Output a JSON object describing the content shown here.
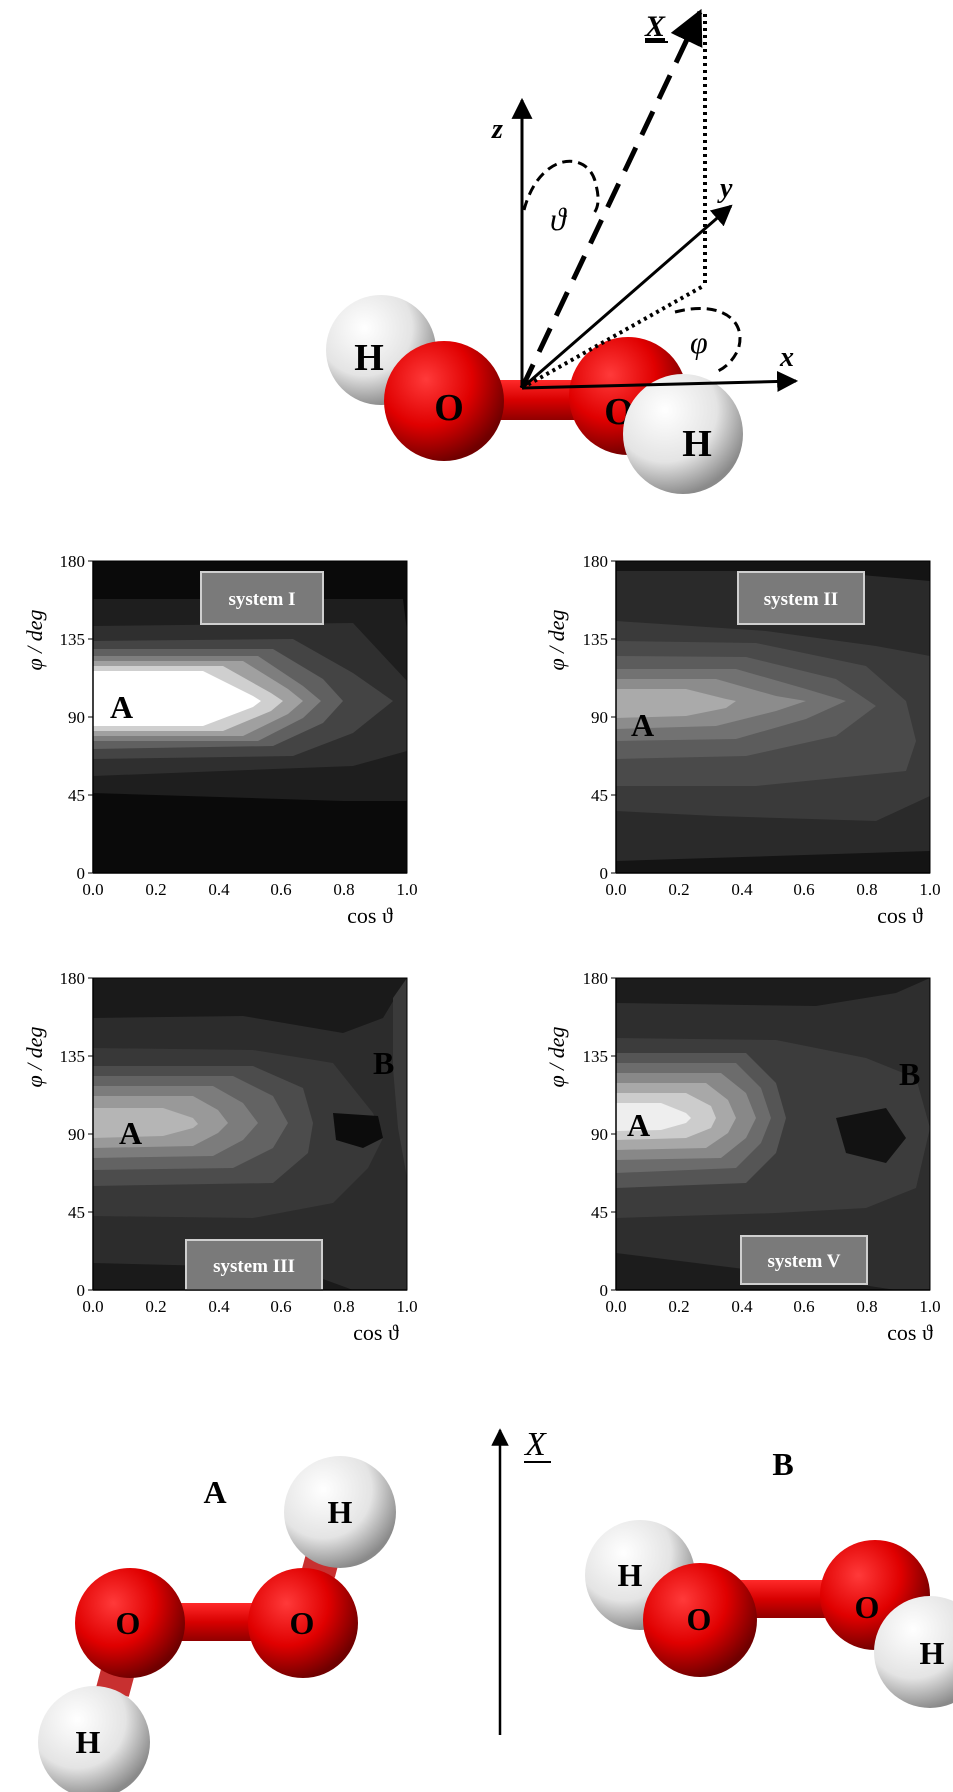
{
  "top_diagram": {
    "axis_z": "z",
    "axis_y": "y",
    "axis_x": "x",
    "axis_X": "X",
    "angle_theta": "ϑ",
    "angle_phi": "φ",
    "atoms": [
      "H",
      "O",
      "O",
      "H"
    ]
  },
  "contour_axes": {
    "ylabel": "φ / deg",
    "xlabel": "cos ϑ",
    "yticks": [
      "0",
      "45",
      "90",
      "135",
      "180"
    ],
    "xticks": [
      "0.0",
      "0.2",
      "0.4",
      "0.6",
      "0.8",
      "1.0"
    ]
  },
  "chart_data": [
    {
      "type": "heatmap",
      "badge": "system I",
      "xlim": [
        0.0,
        1.0
      ],
      "ylim": [
        0,
        180
      ],
      "regions": [
        {
          "label": "A",
          "x": 0.1,
          "y": 90
        }
      ],
      "peak": {
        "x": 0.0,
        "y": 90,
        "level": "max"
      }
    },
    {
      "type": "heatmap",
      "badge": "system II",
      "xlim": [
        0.0,
        1.0
      ],
      "ylim": [
        0,
        180
      ],
      "regions": [
        {
          "label": "A",
          "x": 0.1,
          "y": 80
        }
      ],
      "peak": {
        "x": 0.1,
        "y": 90,
        "level": "medium"
      }
    },
    {
      "type": "heatmap",
      "badge": "system III",
      "xlim": [
        0.0,
        1.0
      ],
      "ylim": [
        0,
        180
      ],
      "regions": [
        {
          "label": "A",
          "x": 0.13,
          "y": 87
        },
        {
          "label": "B",
          "x": 0.94,
          "y": 130
        }
      ],
      "peak": {
        "x": 0.2,
        "y": 90,
        "level": "medium"
      }
    },
    {
      "type": "heatmap",
      "badge": "system V",
      "xlim": [
        0.0,
        1.0
      ],
      "ylim": [
        0,
        180
      ],
      "regions": [
        {
          "label": "A",
          "x": 0.08,
          "y": 85
        },
        {
          "label": "B",
          "x": 0.94,
          "y": 123
        }
      ],
      "peak": {
        "x": 0.15,
        "y": 90,
        "level": "high"
      }
    }
  ],
  "bottom": {
    "label_A": "A",
    "label_B": "B",
    "axis_X": "X",
    "atoms_A": [
      "H",
      "O",
      "O",
      "H"
    ],
    "atoms_B": [
      "H",
      "O",
      "O",
      "H"
    ]
  }
}
